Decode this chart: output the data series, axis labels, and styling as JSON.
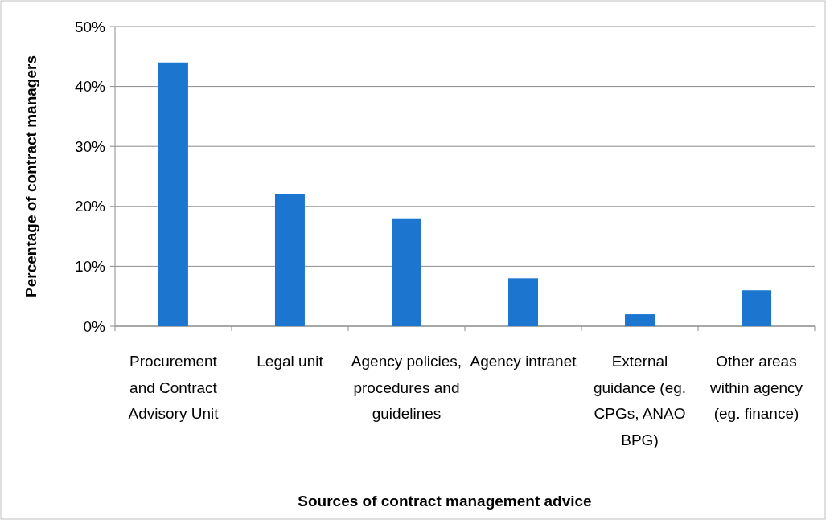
{
  "chart_data": {
    "type": "bar",
    "xlabel": "Sources of contract management advice",
    "ylabel": "Percentage of contract managers",
    "categories": [
      "Procurement and Contract Advisory Unit",
      "Legal unit",
      "Agency policies, procedures and guidelines",
      "Agency intranet",
      "External guidance (eg. CPGs, ANAO BPG)",
      "Other areas within agency (eg. finance)"
    ],
    "values": [
      44,
      22,
      18,
      8,
      2,
      6
    ],
    "color": "#1c75cf",
    "ylim": [
      0,
      50
    ],
    "yticks": [
      {
        "value": 0,
        "label": "0%"
      },
      {
        "value": 10,
        "label": "10%"
      },
      {
        "value": 20,
        "label": "20%"
      },
      {
        "value": 30,
        "label": "30%"
      },
      {
        "value": 40,
        "label": "40%"
      },
      {
        "value": 50,
        "label": "50%"
      }
    ],
    "grid": "y"
  }
}
